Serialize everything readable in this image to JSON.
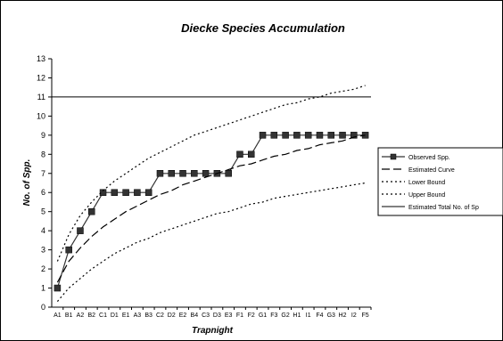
{
  "chart_data": {
    "type": "line",
    "title": "Diecke Species Accumulation",
    "xlabel": "Trapnight",
    "ylabel": "No. of Spp.",
    "ylim": [
      0,
      13
    ],
    "yticks": [
      0,
      1,
      2,
      3,
      4,
      5,
      6,
      7,
      8,
      9,
      10,
      11,
      12,
      13
    ],
    "grid": false,
    "legend_position": "right",
    "categories": [
      "A1",
      "B1",
      "A2",
      "B2",
      "C1",
      "D1",
      "E1",
      "A3",
      "B3",
      "C2",
      "D2",
      "E2",
      "B4",
      "C3",
      "D3",
      "E3",
      "F1",
      "F2",
      "G1",
      "F3",
      "G2",
      "H1",
      "I1",
      "F4",
      "G3",
      "H2",
      "I2",
      "F5"
    ],
    "series": [
      {
        "name": "Observed Spp.",
        "style": "solid-markers",
        "color": "#333333",
        "values": [
          1,
          3,
          4,
          5,
          6,
          6,
          6,
          6,
          6,
          7,
          7,
          7,
          7,
          7,
          7,
          7,
          8,
          8,
          9,
          9,
          9,
          9,
          9,
          9,
          9,
          9,
          9,
          9
        ]
      },
      {
        "name": "Estimated Curve",
        "style": "long-dash",
        "color": "#000000",
        "values": [
          1.3,
          2.4,
          3.1,
          3.7,
          4.2,
          4.6,
          5.0,
          5.3,
          5.6,
          5.9,
          6.1,
          6.4,
          6.6,
          6.8,
          7.0,
          7.2,
          7.4,
          7.5,
          7.7,
          7.9,
          8.0,
          8.2,
          8.3,
          8.5,
          8.6,
          8.7,
          8.9,
          9.0
        ]
      },
      {
        "name": "Lower Bound",
        "style": "dotted",
        "color": "#000000",
        "values": [
          0.3,
          1.0,
          1.5,
          2.0,
          2.4,
          2.8,
          3.1,
          3.4,
          3.6,
          3.9,
          4.1,
          4.3,
          4.5,
          4.7,
          4.9,
          5.0,
          5.2,
          5.4,
          5.5,
          5.7,
          5.8,
          5.9,
          6.0,
          6.1,
          6.2,
          6.3,
          6.4,
          6.5
        ]
      },
      {
        "name": "Upper Bound",
        "style": "dotted",
        "color": "#000000",
        "values": [
          2.4,
          3.8,
          4.8,
          5.5,
          6.1,
          6.6,
          7.0,
          7.4,
          7.8,
          8.1,
          8.4,
          8.7,
          9.0,
          9.2,
          9.4,
          9.6,
          9.8,
          10.0,
          10.2,
          10.4,
          10.6,
          10.7,
          10.9,
          11.0,
          11.2,
          11.3,
          11.4,
          11.6
        ]
      },
      {
        "name": "Estimated Total No. of Sp",
        "style": "solid",
        "color": "#000000",
        "values": [
          11,
          11,
          11,
          11,
          11,
          11,
          11,
          11,
          11,
          11,
          11,
          11,
          11,
          11,
          11,
          11,
          11,
          11,
          11,
          11,
          11,
          11,
          11,
          11,
          11,
          11,
          11,
          11
        ]
      }
    ]
  }
}
